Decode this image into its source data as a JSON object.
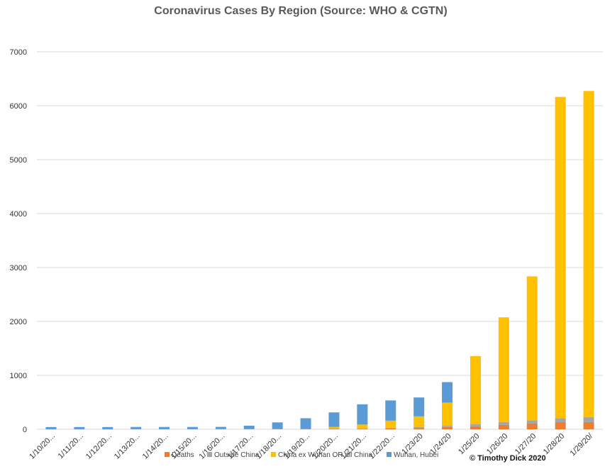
{
  "chart_data": {
    "type": "bar",
    "stacked": true,
    "title": "Coronavirus Cases By Region (Source:  WHO & CGTN)",
    "credit": "© Timothy Dick 2020",
    "ylim": [
      0,
      7000
    ],
    "yticks": [
      0,
      1000,
      2000,
      3000,
      4000,
      5000,
      6000,
      7000
    ],
    "grid": true,
    "legend_position": "bottom",
    "categories": [
      "1/10/20...",
      "1/11/20...",
      "1/12/20...",
      "1/13/20...",
      "1/14/20...",
      "1/15/20...",
      "1/16/20...",
      "1/17/20...",
      "1/18/20...",
      "1/19/20...",
      "1/20/20...",
      "1/21/20...",
      "1/22/20...",
      "1/23/20",
      "1/24/20",
      "1/25/20",
      "1/26/20",
      "1/27/20",
      "1/28/20",
      "1/29/20/"
    ],
    "series": [
      {
        "name": "Deaths",
        "color": "#ED7D31",
        "values": [
          1,
          1,
          1,
          1,
          1,
          1,
          2,
          2,
          3,
          3,
          6,
          9,
          17,
          25,
          41,
          56,
          80,
          106,
          132,
          133
        ]
      },
      {
        "name": "Outside China",
        "color": "#A5A5A5",
        "values": [
          0,
          0,
          0,
          1,
          1,
          1,
          2,
          3,
          4,
          4,
          7,
          9,
          13,
          15,
          24,
          41,
          56,
          60,
          71,
          90
        ]
      },
      {
        "name": "China ex Wuhan OR all China",
        "color": "#FFC000",
        "values": [
          0,
          0,
          0,
          0,
          0,
          0,
          0,
          0,
          0,
          0,
          30,
          70,
          130,
          200,
          430,
          1260,
          1940,
          2670,
          5960,
          6050
        ]
      },
      {
        "name": "Wuhan, Hubei",
        "color": "#5B9BD5",
        "values": [
          41,
          41,
          41,
          41,
          41,
          41,
          41,
          62,
          121,
          198,
          270,
          375,
          375,
          350,
          380,
          0,
          0,
          0,
          0,
          0
        ]
      }
    ]
  }
}
